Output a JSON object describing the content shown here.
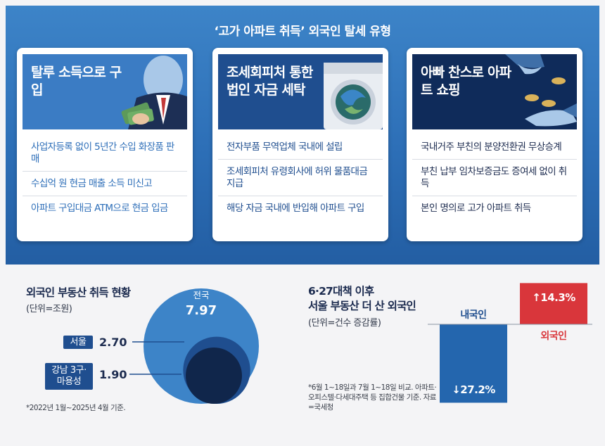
{
  "title": "‘고가 아파트 취득’ 외국인 탈세 유형",
  "cards": [
    {
      "head": "탈루 소득으로 구입",
      "items": [
        "사업자등록 없이 5년간 수입 화장품 판매",
        "수십억 원 현금 매출 소득 미신고",
        "아파트 구입대금 ATM으로 현금 입금"
      ]
    },
    {
      "head": "조세회피처 통한 법인 자금 세탁",
      "items": [
        "전자부품 무역업체 국내에 설립",
        "조세회피처 유령회사에 허위 물품대금 지급",
        "해당 자금 국내에 반입해 아파트 구입"
      ]
    },
    {
      "head": "아빠 찬스로 아파트 쇼핑",
      "items": [
        "국내거주 부친의 분양전환권 무상승계",
        "부친 납부 임차보증금도 증여세 없이 취득",
        "본인 명의로 고가 아파트 취득"
      ]
    }
  ],
  "stats": {
    "title": "외국인 부동산 취득 현황",
    "unit": "(단위=조원)",
    "footnote": "*2022년 1월~2025년 4월 기준.",
    "regions": [
      {
        "label": "전국",
        "value": "7.97",
        "amount": 7.97
      },
      {
        "label": "서울",
        "value": "2.70",
        "amount": 2.7
      },
      {
        "label": "강남 3구·마용성",
        "value": "1.90",
        "amount": 1.9
      }
    ]
  },
  "change": {
    "title_line1": "6·27대책 이후",
    "title_line2": "서울 부동산 더 산 외국인",
    "unit": "(단위=건수 증감률)",
    "footnote": "*6월 1~18일과 7월 1~18일 비교. 아파트·오피스텔·다세대주택 등 집합건물 기준. 자료=국세청",
    "bars": [
      {
        "label": "내국인",
        "value": -27.2,
        "text": "↓27.2%",
        "color": "#2466ae"
      },
      {
        "label": "외국인",
        "value": 14.3,
        "text": "↑14.3%",
        "color": "#d9363b"
      }
    ]
  },
  "chart_data": [
    {
      "type": "bubble",
      "title": "외국인 부동산 취득 현황",
      "unit": "조원",
      "categories": [
        "전국",
        "서울",
        "강남 3구·마용성"
      ],
      "values": [
        7.97,
        2.7,
        1.9
      ]
    },
    {
      "type": "bar",
      "title": "6·27대책 이후 서울 부동산 더 산 외국인",
      "unit": "건수 증감률",
      "categories": [
        "내국인",
        "외국인"
      ],
      "values": [
        -27.2,
        14.3
      ]
    }
  ],
  "colors": {
    "panel": "#2d6fb7",
    "navy": "#1f4e8f",
    "red": "#d9363b",
    "blue_bar": "#2466ae"
  }
}
